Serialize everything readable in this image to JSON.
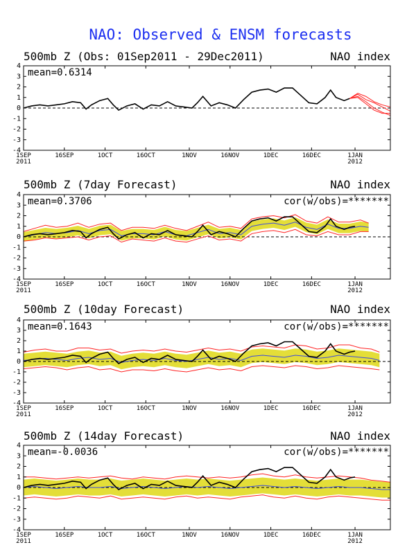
{
  "title": "NAO: Observed & ENSM forecasts",
  "colors": {
    "title": "#1b2ef0",
    "observed": "#000000",
    "member": "#ff2020",
    "spread": "#e4de38",
    "ensmean": "#3a4adf",
    "zero": "#000000"
  },
  "x_ticks": [
    {
      "label": "1SEP",
      "sub": "2011",
      "day": 0
    },
    {
      "label": "16SEP",
      "sub": "",
      "day": 15
    },
    {
      "label": "1OCT",
      "sub": "",
      "day": 30
    },
    {
      "label": "16OCT",
      "sub": "",
      "day": 45
    },
    {
      "label": "1NOV",
      "sub": "",
      "day": 61
    },
    {
      "label": "16NOV",
      "sub": "",
      "day": 76
    },
    {
      "label": "1DEC",
      "sub": "",
      "day": 91
    },
    {
      "label": "16DEC",
      "sub": "",
      "day": 106
    },
    {
      "label": "1JAN",
      "sub": "2012",
      "day": 122
    }
  ],
  "y_ticks": [
    4,
    3,
    2,
    1,
    0,
    -1,
    -2,
    -3,
    -4
  ],
  "chart_data": [
    {
      "type": "line",
      "title_left": "500mb Z (Obs: 01Sep2011 - 29Dec2011)",
      "title_right": "NAO index",
      "mean_label": "mean=0.6314",
      "cor_label": "",
      "xlim_days": [
        0,
        135
      ],
      "ylim": [
        -4,
        4
      ],
      "observed": {
        "x": [
          0,
          3,
          6,
          9,
          12,
          15,
          18,
          21,
          23,
          25,
          28,
          31,
          33,
          35,
          38,
          41,
          44,
          47,
          50,
          53,
          56,
          59,
          62,
          64,
          66,
          69,
          72,
          75,
          78,
          81,
          84,
          87,
          90,
          93,
          96,
          99,
          102,
          105,
          108,
          111,
          113,
          115,
          118,
          120
        ],
        "y": [
          0,
          0.2,
          0.3,
          0.2,
          0.3,
          0.4,
          0.6,
          0.5,
          -0.1,
          0.3,
          0.7,
          0.9,
          0.3,
          -0.2,
          0.2,
          0.4,
          -0.1,
          0.3,
          0.2,
          0.6,
          0.2,
          0.1,
          0,
          0.5,
          1.1,
          0.2,
          0.5,
          0.3,
          0,
          0.8,
          1.5,
          1.7,
          1.8,
          1.5,
          1.9,
          1.9,
          1.2,
          0.5,
          0.4,
          1.0,
          1.7,
          1.0,
          0.7,
          0.9
        ]
      },
      "members": [
        {
          "x": [
            120,
            123,
            126,
            129,
            132,
            135
          ],
          "y": [
            0.9,
            1.3,
            0.8,
            0.5,
            0.1,
            -0.3
          ]
        },
        {
          "x": [
            120,
            123,
            126,
            129,
            132,
            135
          ],
          "y": [
            0.9,
            1.1,
            0.6,
            0.0,
            -0.4,
            -0.7
          ]
        },
        {
          "x": [
            120,
            123,
            126,
            129,
            132,
            135
          ],
          "y": [
            0.9,
            1.4,
            1.1,
            0.6,
            0.3,
            0.1
          ]
        },
        {
          "x": [
            120,
            123,
            126,
            129,
            132,
            135
          ],
          "y": [
            0.9,
            1.0,
            0.4,
            -0.2,
            -0.5,
            -0.5
          ]
        }
      ]
    },
    {
      "type": "line",
      "title_left": "500mb Z (7day Forecast)",
      "title_right": "NAO index",
      "mean_label": "mean=0.3706",
      "cor_label": "cor(w/obs)=*******",
      "xlim_days": [
        0,
        135
      ],
      "ylim": [
        -4,
        4
      ],
      "observed": {
        "x": [
          0,
          3,
          6,
          9,
          12,
          15,
          18,
          21,
          23,
          25,
          28,
          31,
          33,
          35,
          38,
          41,
          44,
          47,
          50,
          53,
          56,
          59,
          62,
          64,
          66,
          69,
          72,
          75,
          78,
          81,
          84,
          87,
          90,
          93,
          96,
          99,
          102,
          105,
          108,
          111,
          113,
          115,
          118,
          120,
          122
        ],
        "y": [
          0,
          0.2,
          0.3,
          0.2,
          0.3,
          0.4,
          0.6,
          0.5,
          -0.1,
          0.3,
          0.7,
          0.9,
          0.3,
          -0.2,
          0.2,
          0.4,
          -0.1,
          0.3,
          0.2,
          0.6,
          0.2,
          0.1,
          0,
          0.5,
          1.1,
          0.2,
          0.5,
          0.3,
          0,
          0.8,
          1.5,
          1.7,
          1.8,
          1.5,
          1.9,
          1.9,
          1.2,
          0.5,
          0.4,
          1.0,
          1.7,
          1.0,
          0.7,
          0.9,
          1.0
        ]
      },
      "ensmean": {
        "x": [
          0,
          4,
          8,
          12,
          16,
          20,
          24,
          28,
          32,
          36,
          40,
          44,
          48,
          52,
          56,
          60,
          64,
          68,
          72,
          76,
          80,
          84,
          88,
          92,
          96,
          100,
          104,
          108,
          112,
          116,
          120,
          124,
          127
        ],
        "y": [
          0,
          0.2,
          0.4,
          0.3,
          0.4,
          0.6,
          0.3,
          0.6,
          0.7,
          0.1,
          0.3,
          0.3,
          0.2,
          0.5,
          0.2,
          0.1,
          0.4,
          0.7,
          0.3,
          0.4,
          0.2,
          1.0,
          1.2,
          1.3,
          1.1,
          1.4,
          0.9,
          0.7,
          1.2,
          0.8,
          0.8,
          1.0,
          0.9
        ]
      },
      "spread_halfwidth": 0.45,
      "members": [
        {
          "x": [
            0,
            4,
            8,
            12,
            16,
            20,
            24,
            28,
            32,
            36,
            40,
            44,
            48,
            52,
            56,
            60,
            64,
            68,
            72,
            76,
            80,
            84,
            88,
            92,
            96,
            100,
            104,
            108,
            112,
            116,
            120,
            124,
            127
          ],
          "y": [
            0.5,
            0.8,
            1.1,
            0.9,
            1.0,
            1.3,
            0.9,
            1.2,
            1.3,
            0.6,
            0.9,
            0.9,
            0.8,
            1.1,
            0.8,
            0.6,
            1.0,
            1.4,
            0.9,
            1.0,
            0.8,
            1.7,
            1.9,
            2.0,
            1.8,
            2.1,
            1.5,
            1.3,
            1.9,
            1.4,
            1.4,
            1.6,
            1.3
          ]
        },
        {
          "x": [
            0,
            4,
            8,
            12,
            16,
            20,
            24,
            28,
            32,
            36,
            40,
            44,
            48,
            52,
            56,
            60,
            64,
            68,
            72,
            76,
            80,
            84,
            88,
            92,
            96,
            100,
            104,
            108,
            112,
            116,
            120,
            124,
            127
          ],
          "y": [
            -0.4,
            -0.3,
            -0.1,
            -0.2,
            -0.1,
            0.0,
            -0.3,
            0.0,
            0.1,
            -0.5,
            -0.2,
            -0.3,
            -0.4,
            -0.1,
            -0.4,
            -0.5,
            -0.2,
            0.1,
            -0.3,
            -0.2,
            -0.4,
            0.3,
            0.5,
            0.6,
            0.4,
            0.7,
            0.2,
            0.1,
            0.5,
            0.2,
            0.2,
            0.5,
            0.5
          ]
        }
      ]
    },
    {
      "type": "line",
      "title_left": "500mb Z (10day Forecast)",
      "title_right": "NAO index",
      "mean_label": "mean=0.1643",
      "cor_label": "cor(w/obs)=*******",
      "xlim_days": [
        0,
        135
      ],
      "ylim": [
        -4,
        4
      ],
      "observed": {
        "x": [
          0,
          3,
          6,
          9,
          12,
          15,
          18,
          21,
          23,
          25,
          28,
          31,
          33,
          35,
          38,
          41,
          44,
          47,
          50,
          53,
          56,
          59,
          62,
          64,
          66,
          69,
          72,
          75,
          78,
          81,
          84,
          87,
          90,
          93,
          96,
          99,
          102,
          105,
          108,
          111,
          113,
          115,
          118,
          120,
          122
        ],
        "y": [
          0,
          0.2,
          0.3,
          0.2,
          0.3,
          0.4,
          0.6,
          0.5,
          -0.1,
          0.3,
          0.7,
          0.9,
          0.3,
          -0.2,
          0.2,
          0.4,
          -0.1,
          0.3,
          0.2,
          0.6,
          0.2,
          0.1,
          0,
          0.5,
          1.1,
          0.2,
          0.5,
          0.3,
          0,
          0.8,
          1.5,
          1.7,
          1.8,
          1.5,
          1.9,
          1.9,
          1.2,
          0.5,
          0.4,
          1.0,
          1.7,
          1.0,
          0.7,
          0.9,
          1.0
        ]
      },
      "ensmean": {
        "x": [
          0,
          4,
          8,
          12,
          16,
          20,
          24,
          28,
          32,
          36,
          40,
          44,
          48,
          52,
          56,
          60,
          64,
          68,
          72,
          76,
          80,
          84,
          88,
          92,
          96,
          100,
          104,
          108,
          112,
          116,
          120,
          124,
          128,
          131
        ],
        "y": [
          0.1,
          0.2,
          0.3,
          0.2,
          0.1,
          0.3,
          0.4,
          0.2,
          0.3,
          -0.1,
          0.1,
          0.2,
          0.1,
          0.3,
          0.1,
          0.0,
          0.2,
          0.4,
          0.2,
          0.3,
          0.1,
          0.5,
          0.6,
          0.5,
          0.4,
          0.6,
          0.5,
          0.3,
          0.4,
          0.6,
          0.5,
          0.4,
          0.3,
          0.1
        ]
      },
      "spread_halfwidth": 0.65,
      "members": [
        {
          "x": [
            0,
            4,
            8,
            12,
            16,
            20,
            24,
            28,
            32,
            36,
            40,
            44,
            48,
            52,
            56,
            60,
            64,
            68,
            72,
            76,
            80,
            84,
            88,
            92,
            96,
            100,
            104,
            108,
            112,
            116,
            120,
            124,
            128,
            131
          ],
          "y": [
            0.9,
            1.1,
            1.2,
            1.0,
            1.0,
            1.3,
            1.3,
            1.1,
            1.2,
            0.8,
            1.0,
            1.1,
            1.0,
            1.2,
            1.0,
            0.9,
            1.1,
            1.3,
            1.1,
            1.2,
            1.0,
            1.4,
            1.5,
            1.4,
            1.3,
            1.6,
            1.5,
            1.2,
            1.3,
            1.6,
            1.6,
            1.3,
            1.2,
            0.9
          ]
        },
        {
          "x": [
            0,
            4,
            8,
            12,
            16,
            20,
            24,
            28,
            32,
            36,
            40,
            44,
            48,
            52,
            56,
            60,
            64,
            68,
            72,
            76,
            80,
            84,
            88,
            92,
            96,
            100,
            104,
            108,
            112,
            116,
            120,
            124,
            128,
            131
          ],
          "y": [
            -0.7,
            -0.6,
            -0.5,
            -0.6,
            -0.8,
            -0.6,
            -0.5,
            -0.8,
            -0.7,
            -1.0,
            -0.8,
            -0.8,
            -0.9,
            -0.7,
            -0.9,
            -1.0,
            -0.8,
            -0.6,
            -0.8,
            -0.7,
            -0.9,
            -0.5,
            -0.4,
            -0.5,
            -0.6,
            -0.4,
            -0.5,
            -0.7,
            -0.6,
            -0.4,
            -0.5,
            -0.6,
            -0.7,
            -0.8
          ]
        }
      ]
    },
    {
      "type": "line",
      "title_left": "500mb Z (14day Forecast)",
      "title_right": "NAO index",
      "mean_label": "mean=-0.0036",
      "cor_label": "cor(w/obs)=*******",
      "xlim_days": [
        0,
        135
      ],
      "ylim": [
        -4,
        4
      ],
      "observed": {
        "x": [
          0,
          3,
          6,
          9,
          12,
          15,
          18,
          21,
          23,
          25,
          28,
          31,
          33,
          35,
          38,
          41,
          44,
          47,
          50,
          53,
          56,
          59,
          62,
          64,
          66,
          69,
          72,
          75,
          78,
          81,
          84,
          87,
          90,
          93,
          96,
          99,
          102,
          105,
          108,
          111,
          113,
          115,
          118,
          120,
          122
        ],
        "y": [
          0,
          0.2,
          0.3,
          0.2,
          0.3,
          0.4,
          0.6,
          0.5,
          -0.1,
          0.3,
          0.7,
          0.9,
          0.3,
          -0.2,
          0.2,
          0.4,
          -0.1,
          0.3,
          0.2,
          0.6,
          0.2,
          0.1,
          0,
          0.5,
          1.1,
          0.2,
          0.5,
          0.3,
          0,
          0.8,
          1.5,
          1.7,
          1.8,
          1.5,
          1.9,
          1.9,
          1.2,
          0.5,
          0.4,
          1.0,
          1.7,
          1.0,
          0.7,
          0.9,
          1.0
        ]
      },
      "ensmean": {
        "x": [
          0,
          4,
          8,
          12,
          16,
          20,
          24,
          28,
          32,
          36,
          40,
          44,
          48,
          52,
          56,
          60,
          64,
          68,
          72,
          76,
          80,
          84,
          88,
          92,
          96,
          100,
          104,
          108,
          112,
          116,
          120,
          124,
          128,
          132,
          135
        ],
        "y": [
          0.0,
          0.1,
          0.0,
          -0.1,
          0.0,
          0.1,
          0.0,
          0.0,
          0.1,
          -0.1,
          0.0,
          0.1,
          0.0,
          -0.1,
          0.0,
          0.1,
          0.0,
          0.1,
          0.0,
          -0.1,
          0.0,
          0.1,
          0.2,
          0.1,
          0.0,
          0.1,
          0.0,
          -0.1,
          0.0,
          0.1,
          0.0,
          0.0,
          -0.1,
          -0.2,
          -0.2
        ]
      },
      "spread_halfwidth": 0.75,
      "members": [
        {
          "x": [
            0,
            4,
            8,
            12,
            16,
            20,
            24,
            28,
            32,
            36,
            40,
            44,
            48,
            52,
            56,
            60,
            64,
            68,
            72,
            76,
            80,
            84,
            88,
            92,
            96,
            100,
            104,
            108,
            112,
            116,
            120,
            124,
            128,
            132,
            135
          ],
          "y": [
            1.0,
            1.0,
            0.9,
            0.8,
            0.9,
            1.0,
            0.9,
            1.0,
            1.1,
            0.9,
            0.8,
            1.0,
            0.9,
            0.8,
            1.0,
            1.1,
            1.0,
            0.9,
            1.0,
            0.9,
            1.0,
            1.2,
            1.3,
            1.1,
            1.0,
            1.2,
            1.0,
            0.9,
            1.0,
            1.1,
            1.0,
            0.9,
            0.7,
            0.6,
            0.5
          ]
        },
        {
          "x": [
            0,
            4,
            8,
            12,
            16,
            20,
            24,
            28,
            32,
            36,
            40,
            44,
            48,
            52,
            56,
            60,
            64,
            68,
            72,
            76,
            80,
            84,
            88,
            92,
            96,
            100,
            104,
            108,
            112,
            116,
            120,
            124,
            128,
            132,
            135
          ],
          "y": [
            -1.0,
            -0.9,
            -1.0,
            -1.1,
            -1.0,
            -0.8,
            -0.9,
            -1.0,
            -0.8,
            -1.1,
            -1.0,
            -0.9,
            -1.0,
            -1.1,
            -0.9,
            -0.8,
            -1.0,
            -0.9,
            -1.0,
            -1.1,
            -0.9,
            -0.8,
            -0.7,
            -0.9,
            -1.0,
            -0.8,
            -1.0,
            -1.1,
            -0.9,
            -0.8,
            -0.9,
            -1.0,
            -1.1,
            -1.2,
            -1.2
          ]
        }
      ]
    }
  ]
}
